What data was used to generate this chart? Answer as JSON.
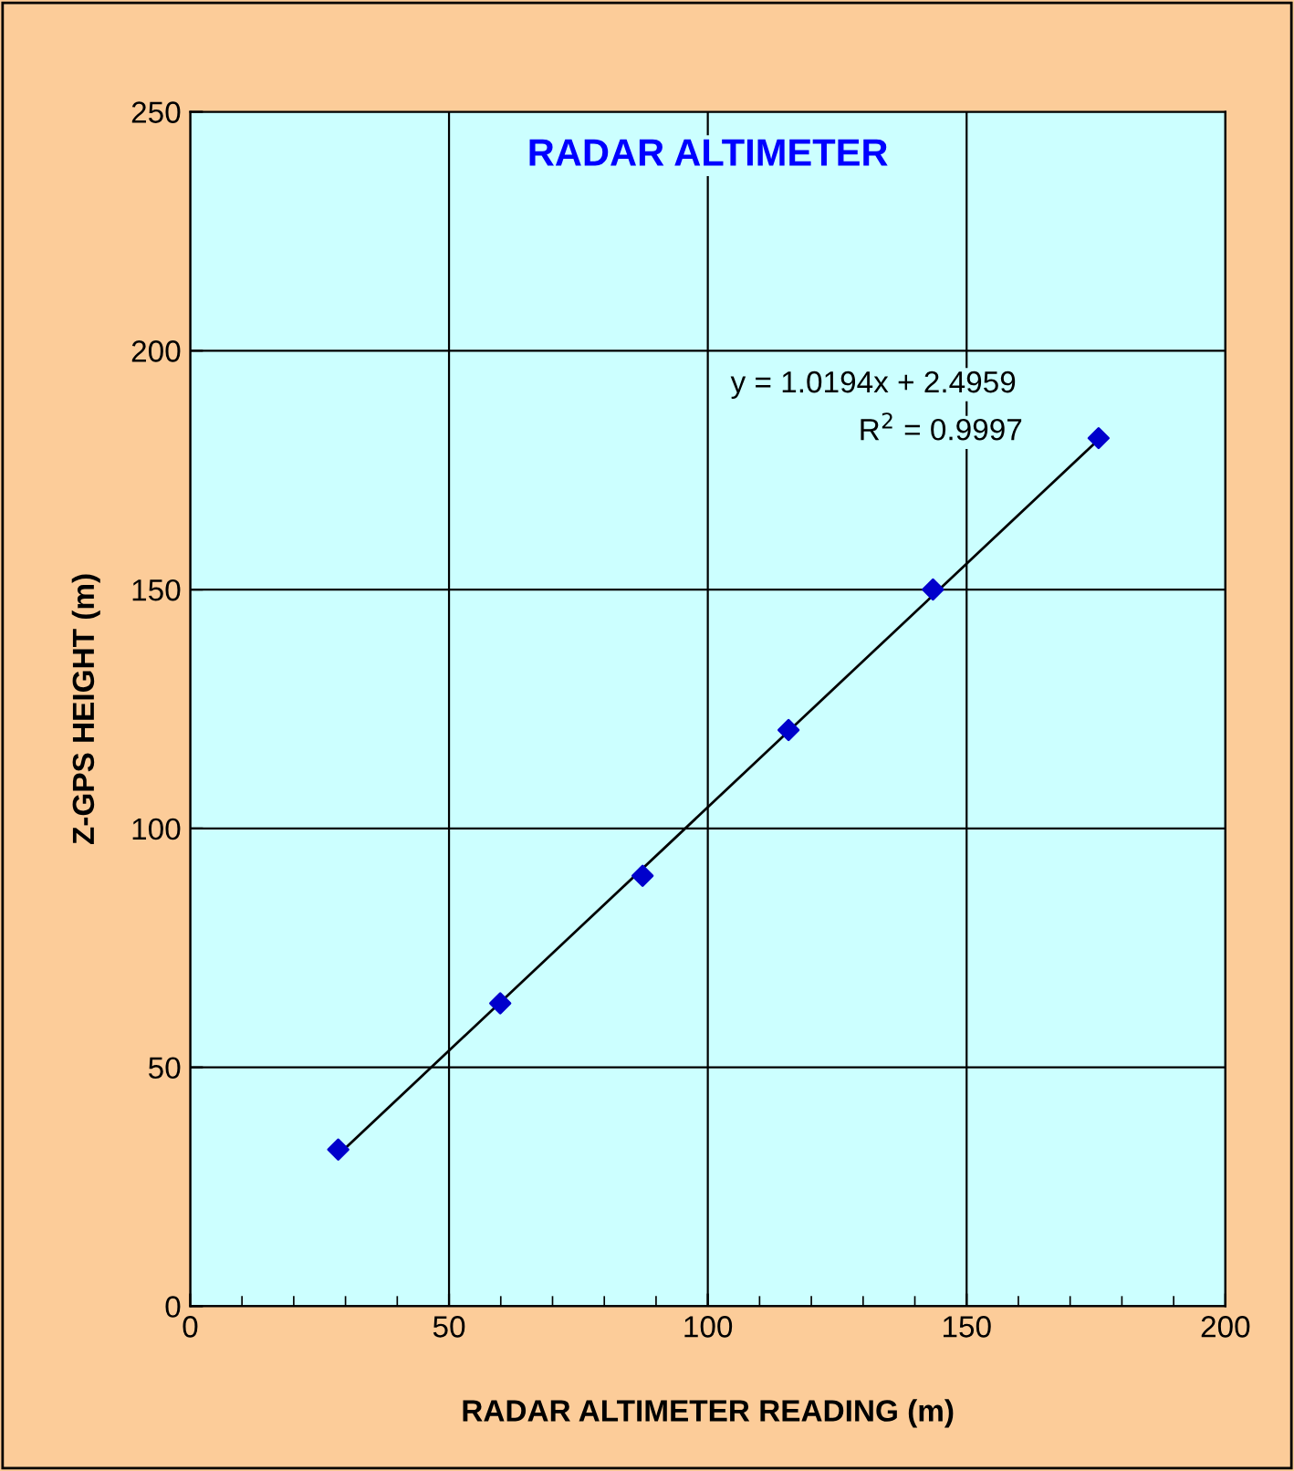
{
  "chart_data": {
    "type": "scatter",
    "title": "RADAR ALTIMETER",
    "xlabel": "RADAR ALTIMETER READING (m)",
    "ylabel": "Z-GPS HEIGHT (m)",
    "annotations": [
      "y = 1.0194x + 2.4959",
      "R$^{2}$ = 0.9997"
    ],
    "series": [
      {
        "type": "scatter",
        "color": "#0000cc",
        "marker": "diamond",
        "x": [
          28.6,
          59.9,
          87.4,
          115.6,
          143.5,
          175.5
        ],
        "values": [
          32.8,
          63.4,
          90.1,
          120.6,
          150.0,
          181.7
        ]
      },
      {
        "type": "line",
        "color": "#000000",
        "marker": "none",
        "line_style": "solid",
        "x": [
          28.6,
          175.5
        ],
        "values": [
          31.7,
          181.4
        ]
      }
    ],
    "xlim": [
      0,
      200
    ],
    "ylim": [
      0,
      250
    ],
    "xticks": [
      0,
      {
        "value": 10,
        "label": null
      },
      {
        "value": 20,
        "label": null
      },
      {
        "value": 30,
        "label": null
      },
      {
        "value": 40,
        "label": null
      },
      50,
      {
        "value": 60,
        "label": null
      },
      {
        "value": 70,
        "label": null
      },
      {
        "value": 80,
        "label": null
      },
      {
        "value": 90,
        "label": null
      },
      100,
      {
        "value": 110,
        "label": null
      },
      {
        "value": 120,
        "label": null
      },
      {
        "value": 130,
        "label": null
      },
      {
        "value": 140,
        "label": null
      },
      150,
      {
        "value": 160,
        "label": null
      },
      {
        "value": 170,
        "label": null
      },
      {
        "value": 180,
        "label": null
      },
      {
        "value": 190,
        "label": null
      },
      200
    ],
    "yticks": [
      0,
      50,
      100,
      150,
      200,
      250
    ],
    "grid": true,
    "legend": false
  }
}
